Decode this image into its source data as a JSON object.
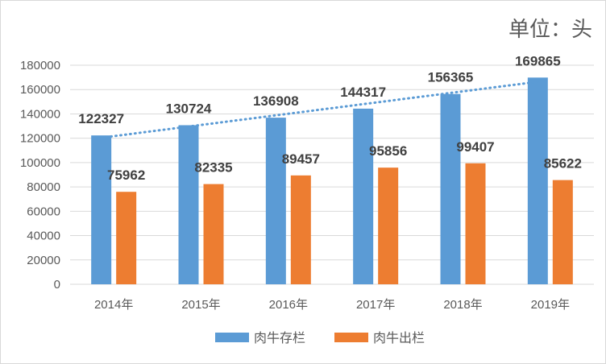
{
  "chart_data": {
    "type": "bar",
    "unit_label": "单位：头",
    "categories": [
      "2014年",
      "2015年",
      "2016年",
      "2017年",
      "2018年",
      "2019年"
    ],
    "series": [
      {
        "name": "肉牛存栏",
        "color": "#5b9bd5",
        "values": [
          122327,
          130724,
          136908,
          144317,
          156365,
          169865
        ]
      },
      {
        "name": "肉牛出栏",
        "color": "#ed7d31",
        "values": [
          75962,
          82335,
          89457,
          95856,
          99407,
          85622
        ]
      }
    ],
    "y_ticks": [
      "0",
      "20000",
      "40000",
      "60000",
      "80000",
      "100000",
      "120000",
      "140000",
      "160000",
      "180000"
    ],
    "ylim": [
      0,
      180000
    ],
    "trendline": {
      "series": "肉牛存栏",
      "type": "linear",
      "style": "dotted",
      "color": "#5b9bd5"
    },
    "grid": true,
    "legend_position": "bottom"
  }
}
